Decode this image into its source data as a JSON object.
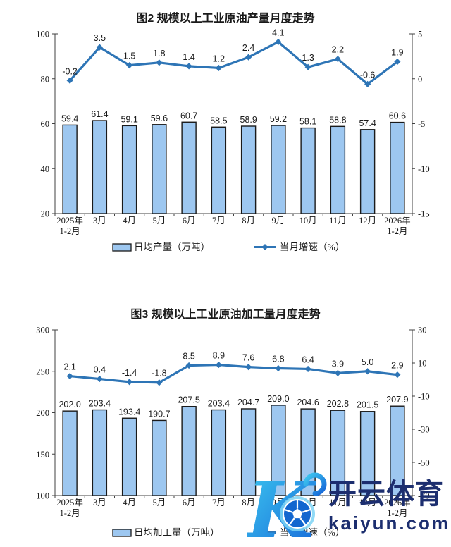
{
  "chart_data": [
    {
      "type": "bar+line",
      "title": "图2 规模以上工业原油产量月度走势",
      "categories": [
        [
          "2025年",
          "1-2月"
        ],
        [
          "3月"
        ],
        [
          "4月"
        ],
        [
          "5月"
        ],
        [
          "6月"
        ],
        [
          "7月"
        ],
        [
          "8月"
        ],
        [
          "9月"
        ],
        [
          "10月"
        ],
        [
          "11月"
        ],
        [
          "12月"
        ],
        [
          "2026年",
          "1-2月"
        ]
      ],
      "series": [
        {
          "name": "日均产量（万吨）",
          "type": "bar",
          "axis": "left",
          "values": [
            59.4,
            61.4,
            59.1,
            59.6,
            60.7,
            58.5,
            58.9,
            59.2,
            58.1,
            58.8,
            57.4,
            60.6
          ]
        },
        {
          "name": "当月增速（%）",
          "type": "line",
          "axis": "right",
          "values": [
            -0.2,
            3.5,
            1.5,
            1.8,
            1.4,
            1.2,
            2.4,
            4.1,
            1.3,
            2.2,
            -0.6,
            1.9
          ]
        }
      ],
      "left_axis": {
        "min": 20,
        "max": 100,
        "ticks": [
          100,
          80,
          60,
          40,
          20
        ]
      },
      "right_axis": {
        "min": -15,
        "max": 5,
        "ticks": [
          5,
          0,
          -5,
          -10,
          -15
        ]
      },
      "legend_position": "bottom",
      "grid": false,
      "colors": {
        "bar_fill": "#9DC7F0",
        "bar_border": "#1a1a1a",
        "line": "#2E75B6",
        "axis": "#404040",
        "label": "#1a1a1a"
      }
    },
    {
      "type": "bar+line",
      "title": "图3 规模以上工业原油加工量月度走势",
      "categories": [
        [
          "2025年",
          "1-2月"
        ],
        [
          "3月"
        ],
        [
          "4月"
        ],
        [
          "5月"
        ],
        [
          "6月"
        ],
        [
          "7月"
        ],
        [
          "8月"
        ],
        [
          "9月"
        ],
        [
          "10月"
        ],
        [
          "11月"
        ],
        [
          "12月"
        ],
        [
          "2026年",
          "1-2月"
        ]
      ],
      "series": [
        {
          "name": "日均加工量（万吨）",
          "type": "bar",
          "axis": "left",
          "values": [
            202.0,
            203.4,
            193.4,
            190.7,
            207.5,
            203.4,
            204.7,
            209.0,
            204.6,
            202.8,
            201.5,
            207.9
          ]
        },
        {
          "name": "当月增速（%）",
          "type": "line",
          "axis": "right",
          "values": [
            2.1,
            0.4,
            -1.4,
            -1.8,
            8.5,
            8.9,
            7.6,
            6.8,
            6.4,
            3.9,
            5.0,
            2.9
          ]
        }
      ],
      "left_axis": {
        "min": 100,
        "max": 300,
        "ticks": [
          300,
          250,
          200,
          150,
          100
        ]
      },
      "right_axis": {
        "min": -70,
        "max": 30,
        "ticks": [
          30,
          10,
          -10,
          -30,
          -50,
          -70
        ]
      },
      "legend_position": "bottom",
      "grid": false,
      "colors": {
        "bar_fill": "#9DC7F0",
        "bar_border": "#1a1a1a",
        "line": "#2E75B6",
        "axis": "#404040",
        "label": "#1a1a1a"
      }
    }
  ],
  "watermark": {
    "brand": "开云体育",
    "domain": "kaiyun.com",
    "logo": "kaiyun-k-soccer-logo",
    "text_color": "#1c2e6f",
    "logo_gradient_start": "#3ec9f0",
    "logo_gradient_end": "#1565d8"
  }
}
